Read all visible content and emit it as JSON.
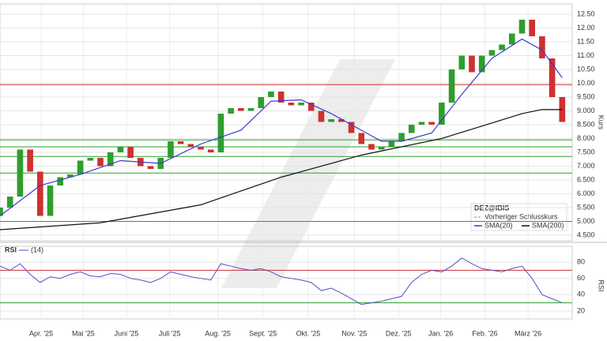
{
  "chart_data": [
    {
      "type": "candlestick",
      "title": "DEZ@IBIS",
      "y_label": "Kurs",
      "xlim": [
        0,
        57
      ],
      "xticks": [
        {
          "value": 4.1,
          "label": "Apr. '25"
        },
        {
          "value": 8.3,
          "label": "Mai '25"
        },
        {
          "value": 12.6,
          "label": "Juni '25"
        },
        {
          "value": 16.9,
          "label": "Juli '25"
        },
        {
          "value": 21.7,
          "label": "Aug. '25"
        },
        {
          "value": 26.2,
          "label": "Sept. '25"
        },
        {
          "value": 30.7,
          "label": "Okt. '25"
        },
        {
          "value": 35.3,
          "label": "Nov. '25"
        },
        {
          "value": 39.7,
          "label": "Dez. '25"
        },
        {
          "value": 43.9,
          "label": "Jan. '26"
        },
        {
          "value": 48.3,
          "label": "Feb. '26"
        },
        {
          "value": 52.6,
          "label": "März '26"
        }
      ],
      "ylim": [
        4.3,
        12.87
      ],
      "yticks": [
        {
          "value": 4.5,
          "label": "4.500"
        },
        {
          "value": 5,
          "label": "5.000"
        },
        {
          "value": 5.5,
          "label": "5.500"
        },
        {
          "value": 6,
          "label": "6.000"
        },
        {
          "value": 6.5,
          "label": "6.500"
        },
        {
          "value": 7,
          "label": "7.000"
        },
        {
          "value": 7.5,
          "label": "7.500"
        },
        {
          "value": 8,
          "label": "8.000"
        },
        {
          "value": 8.5,
          "label": "8.500"
        },
        {
          "value": 9,
          "label": "9.000"
        },
        {
          "value": 9.5,
          "label": "9.500"
        },
        {
          "value": 10,
          "label": "10.00"
        },
        {
          "value": 10.5,
          "label": "10.50"
        },
        {
          "value": 11,
          "label": "11.00"
        },
        {
          "value": 11.5,
          "label": "11.50"
        },
        {
          "value": 12,
          "label": "12.00"
        },
        {
          "value": 12.5,
          "label": "12.50"
        }
      ],
      "grid": true,
      "up_color": "#2e9e2e",
      "down_color": "#d03030",
      "open": [
        5.2,
        5.5,
        5.9,
        7.6,
        6.8,
        5.2,
        6.3,
        6.6,
        6.7,
        7.2,
        7.3,
        7.0,
        7.5,
        7.7,
        7.3,
        7.0,
        6.9,
        7.3,
        7.9,
        7.8,
        7.7,
        7.6,
        7.5,
        8.9,
        9.1,
        9.0,
        9.1,
        9.5,
        9.7,
        9.3,
        9.2,
        9.3,
        9.0,
        8.6,
        8.7,
        8.6,
        8.2,
        7.8,
        7.6,
        7.7,
        7.9,
        8.2,
        8.5,
        8.6,
        8.5,
        9.3,
        10.5,
        11.0,
        10.4,
        11.0,
        11.2,
        11.4,
        11.8,
        12.3,
        11.7,
        10.9,
        9.5
      ],
      "close": [
        5.5,
        5.9,
        7.6,
        6.8,
        5.2,
        6.3,
        6.6,
        6.7,
        7.2,
        7.3,
        7.0,
        7.5,
        7.7,
        7.3,
        7.0,
        6.9,
        7.3,
        7.9,
        7.8,
        7.7,
        7.6,
        7.5,
        8.9,
        9.1,
        9.0,
        9.1,
        9.5,
        9.7,
        9.3,
        9.2,
        9.3,
        9.0,
        8.6,
        8.7,
        8.6,
        8.2,
        7.8,
        7.6,
        7.7,
        7.9,
        8.2,
        8.5,
        8.6,
        8.5,
        9.3,
        10.5,
        11.0,
        10.4,
        11.0,
        11.2,
        11.4,
        11.8,
        12.3,
        11.7,
        10.9,
        9.5,
        8.6
      ],
      "series": [
        {
          "name": "SMA(20)",
          "color": "#3a3ad0",
          "x": [
            0,
            4,
            8,
            12,
            16,
            20,
            24,
            27,
            30,
            33,
            36,
            38,
            40,
            43,
            46,
            49,
            52,
            54,
            56
          ],
          "values": [
            5.2,
            6.3,
            6.7,
            7.2,
            7.1,
            7.8,
            8.3,
            9.35,
            9.4,
            8.9,
            8.3,
            7.9,
            7.9,
            8.2,
            9.6,
            10.9,
            11.6,
            11.2,
            10.2
          ]
        },
        {
          "name": "SMA(200)",
          "color": "#111111",
          "x": [
            0,
            10,
            20,
            28,
            36,
            44,
            52,
            54,
            56
          ],
          "values": [
            4.7,
            4.95,
            5.6,
            6.6,
            7.4,
            8.0,
            8.9,
            9.05,
            9.05
          ]
        }
      ],
      "previous_close_label": "Vorheriger Schlusskurs",
      "levels": [
        {
          "value": 9.95,
          "color": "#d03030"
        },
        {
          "value": 7.95,
          "color": "#2e9e2e"
        },
        {
          "value": 7.7,
          "color": "#2e9e2e"
        },
        {
          "value": 7.35,
          "color": "#2e9e2e"
        },
        {
          "value": 6.75,
          "color": "#2e9e2e"
        },
        {
          "value": 5.0,
          "color": "#2e9e2e"
        }
      ]
    },
    {
      "type": "line",
      "title": "RSI",
      "subtitle": "(14)",
      "y_label": "RSI",
      "xlim": [
        0,
        57
      ],
      "ylim": [
        10.3,
        99.4
      ],
      "yticks": [
        20,
        40,
        60,
        80
      ],
      "series": [
        {
          "name": "RSI",
          "color": "#5050c8",
          "values": [
            75,
            70,
            78,
            65,
            55,
            62,
            60,
            65,
            68,
            63,
            62,
            66,
            65,
            60,
            58,
            55,
            60,
            68,
            65,
            62,
            60,
            58,
            78,
            75,
            72,
            70,
            72,
            68,
            62,
            60,
            58,
            55,
            45,
            48,
            42,
            35,
            28,
            30,
            32,
            35,
            38,
            55,
            65,
            70,
            68,
            75,
            85,
            78,
            72,
            70,
            68,
            72,
            75,
            60,
            40,
            35,
            30
          ]
        }
      ],
      "levels": [
        {
          "value": 70,
          "color": "#d03030"
        },
        {
          "value": 30,
          "color": "#2e9e2e"
        }
      ]
    }
  ]
}
